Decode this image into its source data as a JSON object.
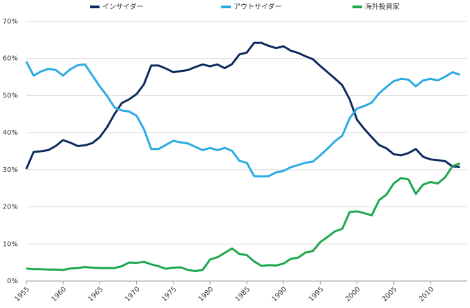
{
  "chart_data": {
    "type": "line",
    "x": [
      1955,
      1956,
      1957,
      1958,
      1959,
      1960,
      1961,
      1962,
      1963,
      1964,
      1965,
      1966,
      1967,
      1968,
      1969,
      1970,
      1971,
      1972,
      1973,
      1974,
      1975,
      1976,
      1977,
      1978,
      1979,
      1980,
      1981,
      1982,
      1983,
      1984,
      1985,
      1986,
      1987,
      1988,
      1989,
      1990,
      1991,
      1992,
      1993,
      1994,
      1995,
      1996,
      1997,
      1998,
      1999,
      2000,
      2001,
      2002,
      2003,
      2004,
      2005,
      2006,
      2007,
      2008,
      2009,
      2010,
      2011,
      2012,
      2013,
      2014
    ],
    "series": [
      {
        "name": "インサイダー",
        "color": "#0d2a5e",
        "values": [
          30.2,
          34.8,
          35.0,
          35.3,
          36.4,
          38.0,
          37.3,
          36.4,
          36.6,
          37.2,
          38.8,
          41.5,
          45.0,
          48.0,
          49.0,
          50.4,
          53.0,
          58.1,
          58.1,
          57.3,
          56.3,
          56.6,
          56.9,
          57.7,
          58.4,
          57.9,
          58.4,
          57.4,
          58.5,
          61.1,
          61.6,
          64.2,
          64.2,
          63.4,
          62.8,
          63.3,
          62.1,
          61.5,
          60.6,
          59.8,
          58.0,
          56.3,
          54.6,
          52.8,
          49.0,
          43.5,
          41.0,
          38.8,
          36.7,
          35.8,
          34.2,
          33.9,
          34.5,
          35.6,
          33.5,
          32.8,
          32.6,
          32.3,
          30.9,
          30.8
        ]
      },
      {
        "name": "アウトサイダー",
        "color": "#29abe2",
        "values": [
          59.2,
          55.4,
          56.5,
          57.2,
          56.9,
          55.4,
          57.1,
          58.2,
          58.4,
          55.4,
          52.5,
          49.9,
          46.8,
          46.0,
          45.7,
          44.6,
          41.0,
          35.6,
          35.6,
          36.7,
          37.8,
          37.4,
          37.1,
          36.2,
          35.3,
          35.9,
          35.3,
          35.9,
          35.1,
          32.4,
          31.9,
          28.3,
          28.2,
          28.3,
          29.3,
          29.7,
          30.7,
          31.3,
          31.9,
          32.2,
          33.9,
          35.7,
          37.7,
          39.2,
          43.9,
          46.5,
          47.2,
          48.1,
          50.6,
          52.3,
          53.9,
          54.5,
          54.3,
          52.5,
          54.1,
          54.5,
          54.1,
          55.1,
          56.3,
          55.6
        ]
      },
      {
        "name": "海外投資家",
        "color": "#1aa84c",
        "values": [
          3.4,
          3.2,
          3.2,
          3.1,
          3.1,
          3.0,
          3.4,
          3.5,
          3.8,
          3.6,
          3.5,
          3.5,
          3.5,
          4.0,
          5.0,
          4.9,
          5.2,
          4.5,
          4.0,
          3.3,
          3.6,
          3.7,
          3.0,
          2.7,
          3.0,
          5.8,
          6.4,
          7.6,
          8.8,
          7.3,
          7.0,
          5.3,
          4.1,
          4.3,
          4.2,
          4.7,
          6.0,
          6.3,
          7.7,
          8.1,
          10.5,
          11.9,
          13.4,
          14.1,
          18.6,
          18.8,
          18.3,
          17.7,
          21.8,
          23.3,
          26.3,
          27.8,
          27.4,
          23.5,
          26.0,
          26.7,
          26.3,
          28.0,
          31.0,
          31.7
        ]
      }
    ],
    "xlim": [
      1955,
      2015
    ],
    "xticks": [
      1955,
      1960,
      1965,
      1970,
      1975,
      1980,
      1985,
      1990,
      1995,
      2000,
      2005,
      2010
    ],
    "ylim": [
      0,
      70
    ],
    "yticks": [
      {
        "value": 0,
        "label": "0%"
      },
      {
        "value": 10,
        "label": "10%"
      },
      {
        "value": 20,
        "label": "20%"
      },
      {
        "value": 30,
        "label": "30%"
      },
      {
        "value": 40,
        "label": "40%"
      },
      {
        "value": 50,
        "label": "50%"
      },
      {
        "value": 60,
        "label": "60%"
      },
      {
        "value": 70,
        "label": "70%"
      }
    ],
    "grid": true,
    "legend": "top"
  }
}
